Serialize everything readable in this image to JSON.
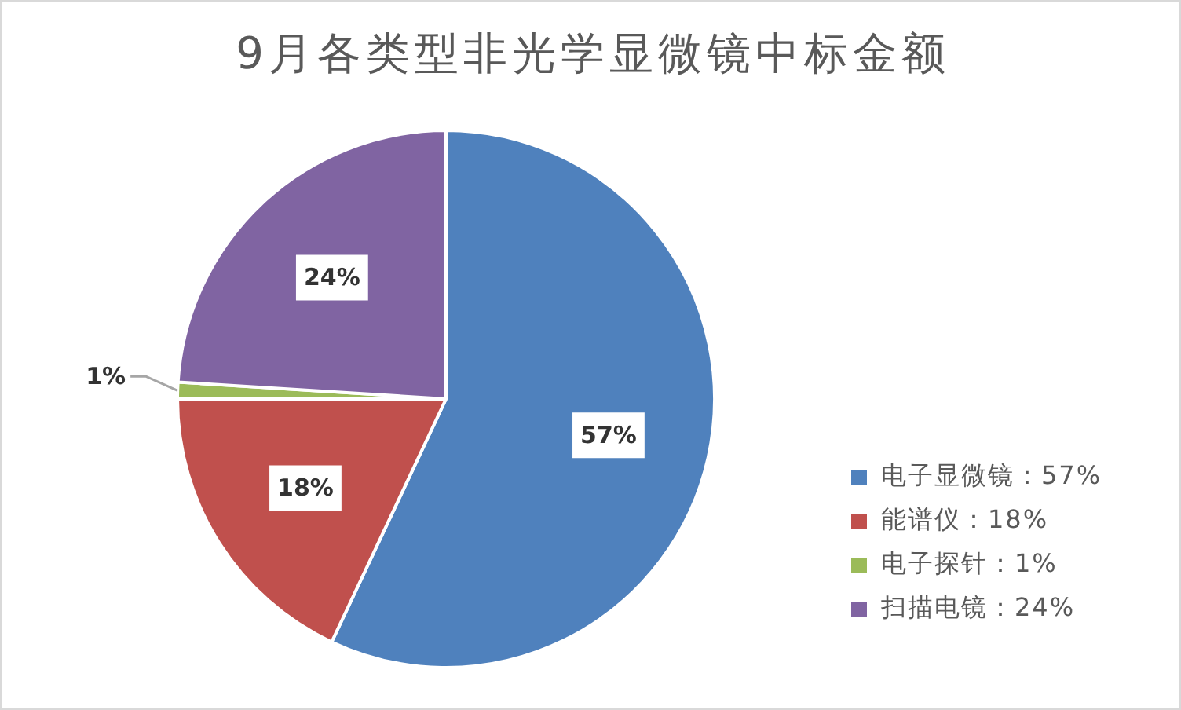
{
  "chart_data": {
    "type": "pie",
    "title": "9月各类型非光学显微镜中标金额",
    "categories": [
      "电子显微镜",
      "能谱仪",
      "电子探针",
      "扫描电镜"
    ],
    "values": [
      57,
      18,
      1,
      24
    ],
    "value_labels": [
      "57%",
      "18%",
      "1%",
      "24%"
    ],
    "colors": [
      "#4f81bd",
      "#c0504d",
      "#9bbb59",
      "#8064a2"
    ],
    "legend": "bottom right"
  }
}
